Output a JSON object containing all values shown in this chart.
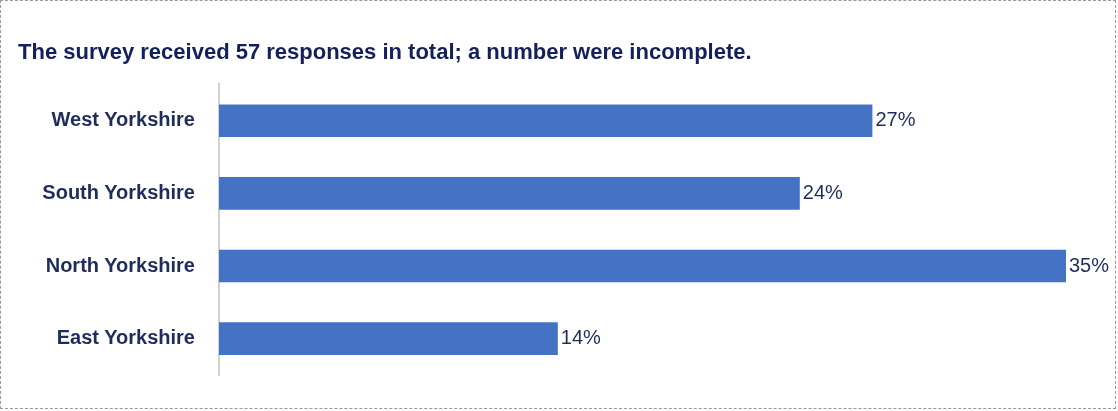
{
  "chart_data": {
    "type": "bar",
    "orientation": "horizontal",
    "title": "The survey received 57 responses in total; a number were incomplete.",
    "categories": [
      "West Yorkshire",
      "South Yorkshire",
      "North Yorkshire",
      "East Yorkshire"
    ],
    "values": [
      27,
      24,
      35,
      14
    ],
    "value_labels": [
      "27%",
      "24%",
      "35%",
      "14%"
    ],
    "color": "#4472c4",
    "legend": false
  }
}
